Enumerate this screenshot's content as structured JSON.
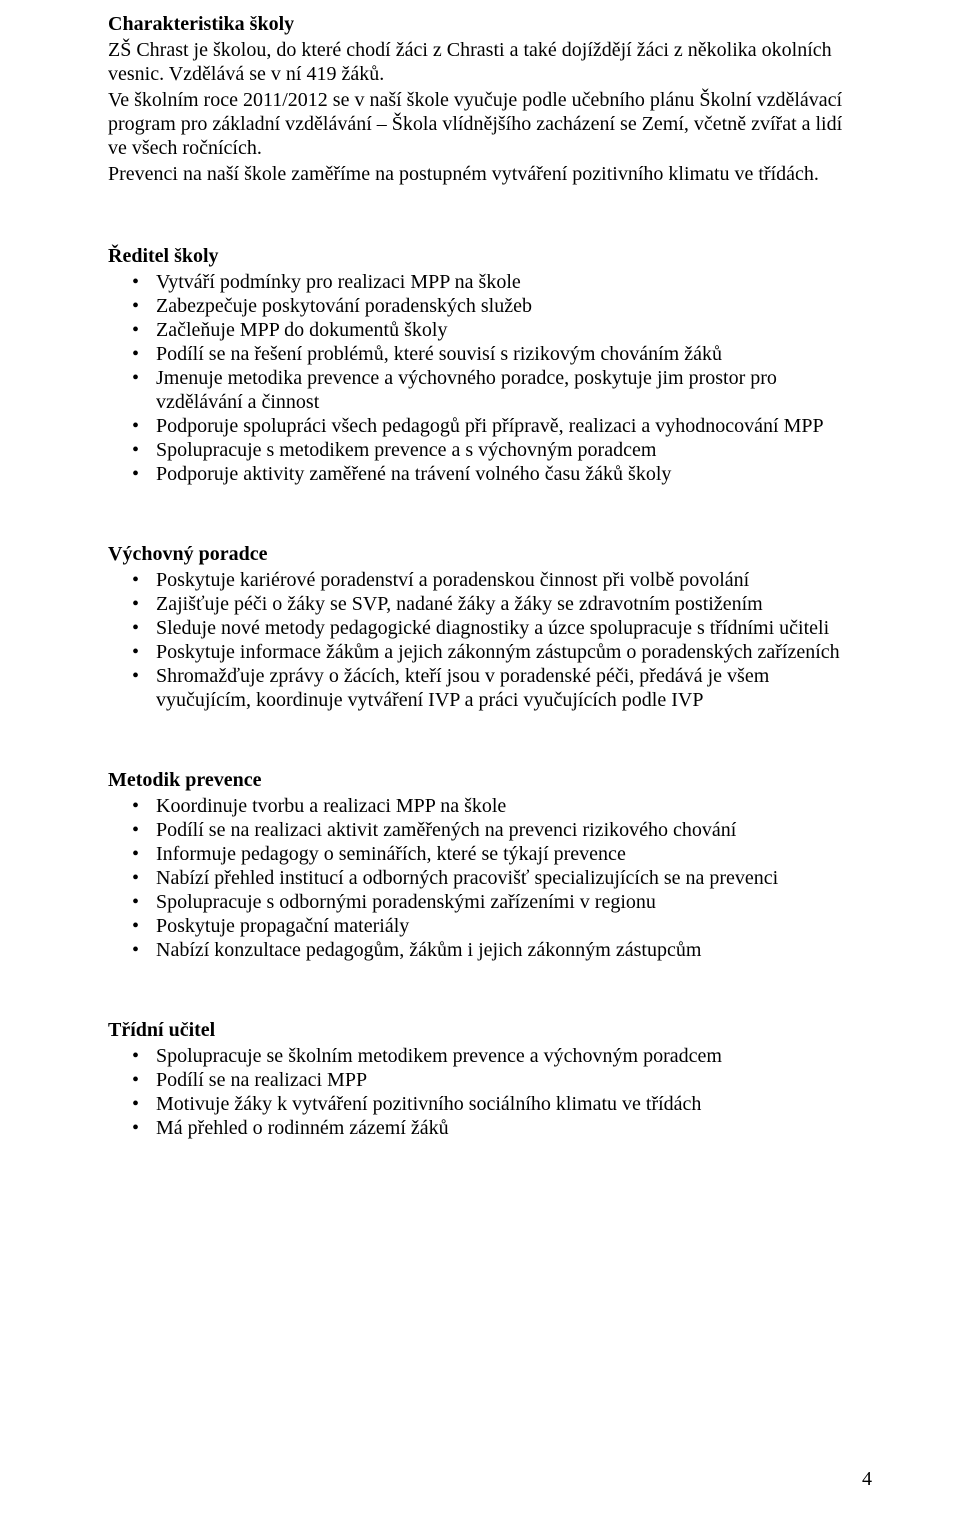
{
  "charakteristika": {
    "heading": "Charakteristika školy",
    "p1": "ZŠ Chrast je školou, do které chodí žáci z Chrasti a také dojíždějí žáci z několika okolních vesnic. Vzdělává se v ní 419 žáků.",
    "p2": "Ve školním roce 2011/2012 se v naší škole vyučuje podle učebního plánu Školní vzdělávací program pro základní vzdělávání – Škola vlídnějšího zacházení se Zemí, včetně zvířat a lidí ve všech ročnících.",
    "p3": "Prevenci na naší škole zaměříme na postupném vytváření pozitivního klimatu ve třídách."
  },
  "reditel": {
    "heading": "Ředitel školy",
    "items": [
      "Vytváří podmínky pro realizaci MPP na škole",
      "Zabezpečuje poskytování poradenských služeb",
      "Začleňuje MPP do dokumentů školy",
      "Podílí se na řešení problémů, které souvisí s rizikovým chováním žáků",
      "Jmenuje metodika prevence a výchovného poradce, poskytuje jim prostor pro vzdělávání a činnost",
      "Podporuje spolupráci všech pedagogů při přípravě, realizaci a vyhodnocování MPP",
      "Spolupracuje s metodikem prevence a s výchovným poradcem",
      "Podporuje aktivity zaměřené na trávení volného času žáků školy"
    ]
  },
  "vychovny": {
    "heading": "Výchovný poradce",
    "items": [
      "Poskytuje kariérové poradenství a poradenskou činnost při volbě povolání",
      "Zajišťuje péči o žáky se SVP, nadané žáky a žáky se zdravotním postižením",
      "Sleduje nové metody pedagogické diagnostiky a úzce spolupracuje s třídními učiteli",
      "Poskytuje informace žákům a jejich zákonným zástupcům o poradenských zařízeních",
      "Shromažďuje zprávy o žácích, kteří jsou v poradenské péči, předává je všem vyučujícím, koordinuje vytváření IVP a práci vyučujících podle IVP"
    ]
  },
  "metodik": {
    "heading": "Metodik prevence",
    "items": [
      "Koordinuje tvorbu a realizaci MPP na škole",
      "Podílí se na realizaci aktivit zaměřených na prevenci rizikového chování",
      "Informuje pedagogy o seminářích, které se týkají prevence",
      "Nabízí přehled institucí a odborných pracovišť specializujících se na prevenci",
      "Spolupracuje s odbornými poradenskými zařízeními v regionu",
      "Poskytuje propagační materiály",
      "Nabízí konzultace pedagogům, žákům i jejich zákonným zástupcům"
    ]
  },
  "tridni": {
    "heading": "Třídní učitel",
    "items": [
      "Spolupracuje se školním metodikem prevence a výchovným poradcem",
      "Podílí se na realizaci MPP",
      "Motivuje žáky k vytváření pozitivního sociálního klimatu ve třídách",
      "Má přehled o rodinném zázemí žáků"
    ]
  },
  "pageNumber": "4"
}
